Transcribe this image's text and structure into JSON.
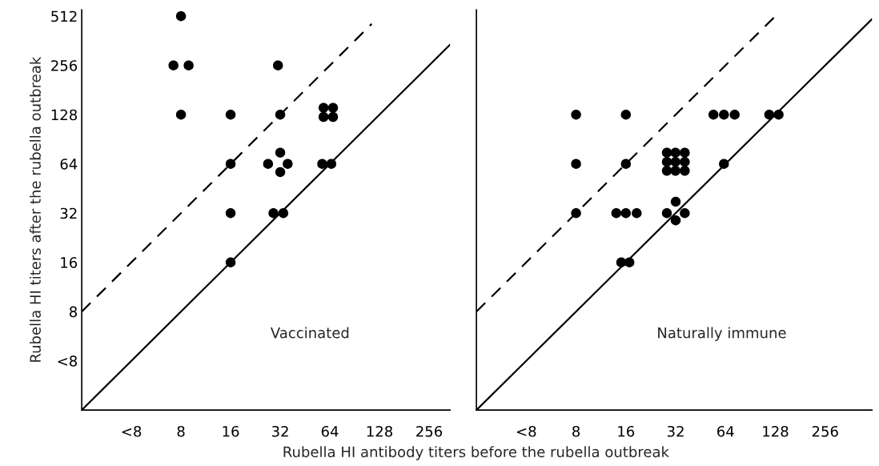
{
  "chart_data": [
    {
      "type": "scatter",
      "ylabel": "Rubella HI titers after the rubella outbreak",
      "xlabel": "Rubella HI antibody titers before the rubella outbreak",
      "annotations": [
        "Vaccinated"
      ],
      "log": "xy",
      "grid": false,
      "legend": false,
      "marker": "circle",
      "xlim": [
        2,
        343
      ],
      "ylim": [
        2,
        560
      ],
      "xticks": [
        {
          "value": 4,
          "label": "<8"
        },
        8,
        16,
        32,
        64,
        128,
        256
      ],
      "yticks": [
        {
          "value": 4,
          "label": "<8"
        },
        8,
        16,
        32,
        64,
        128,
        256,
        512
      ],
      "series": [
        {
          "color": "#000000",
          "x": [
            8,
            7.2,
            8.9,
            8,
            16,
            16,
            16,
            16,
            31,
            32,
            32,
            27,
            35.5,
            32,
            29.1,
            33.4,
            58.6,
            66.9,
            58.6,
            66.9,
            57.5,
            65.3
          ],
          "values": [
            512,
            256,
            256,
            128,
            128,
            64,
            32,
            16,
            256,
            128,
            75,
            64,
            64,
            57,
            32,
            32,
            141,
            141,
            124,
            124,
            64,
            64
          ]
        },
        {
          "type": "line",
          "color": "#000000",
          "line_style": "solid",
          "marker": "none",
          "x": [
            2,
            343
          ],
          "values": [
            2,
            343
          ]
        },
        {
          "type": "line",
          "color": "#000000",
          "line_style": "dashed",
          "marker": "none",
          "x": [
            2,
            115
          ],
          "values": [
            8,
            460
          ]
        }
      ]
    },
    {
      "type": "scatter",
      "annotations": [
        "Naturally immune"
      ],
      "log": "xy",
      "grid": false,
      "legend": false,
      "marker": "circle",
      "tick_labels": "x",
      "xlim": [
        2,
        491
      ],
      "ylim": [
        2,
        560
      ],
      "xticks": [
        {
          "value": 4,
          "label": "<8"
        },
        8,
        16,
        32,
        64,
        128,
        256
      ],
      "yticks": [
        4,
        8,
        16,
        32,
        64,
        128,
        256,
        512
      ],
      "series": [
        {
          "color": "#000000",
          "x": [
            8,
            8,
            8,
            16,
            16,
            14.0,
            16.0,
            18.6,
            15.0,
            16.8,
            28.3,
            31.9,
            36.3,
            28.3,
            31.9,
            36.3,
            28.3,
            31.9,
            36.3,
            32,
            28.3,
            36.3,
            32,
            54.1,
            62.6,
            72.7,
            62.6,
            117.6,
            134
          ],
          "values": [
            128,
            64,
            32,
            128,
            64,
            32,
            32,
            32,
            16,
            16,
            74.9,
            74.9,
            74.9,
            65.8,
            65.8,
            65.8,
            58.1,
            58.1,
            58.1,
            37.6,
            32,
            32,
            28.9,
            128,
            128,
            128,
            64,
            128,
            128
          ]
        },
        {
          "type": "line",
          "color": "#000000",
          "line_style": "solid",
          "marker": "none",
          "x": [
            2,
            491
          ],
          "values": [
            2,
            491
          ]
        },
        {
          "type": "line",
          "color": "#000000",
          "line_style": "dashed",
          "marker": "none",
          "x": [
            2,
            128
          ],
          "values": [
            8,
            512
          ]
        }
      ]
    }
  ]
}
